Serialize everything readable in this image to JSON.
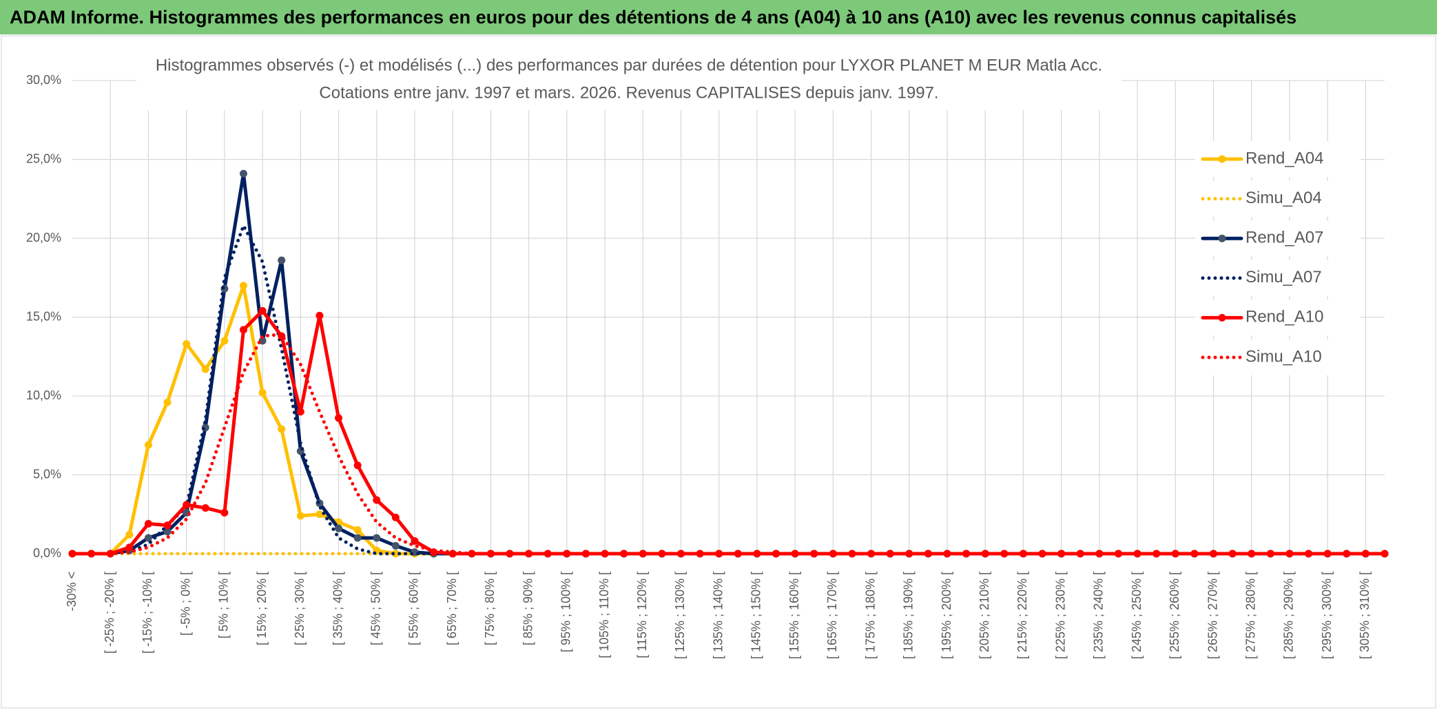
{
  "header": {
    "title": "ADAM Informe. Histogrammes des performances en euros pour des détentions de 4 ans (A04) à 10 ans (A10) avec les revenus connus capitalisés"
  },
  "chart_data": {
    "type": "line",
    "title": "Histogrammes observés (-) et modélisés (...) des performances par durées de détention pour LYXOR PLANET M EUR Matla Acc.",
    "subtitle": "Cotations entre janv. 1997 et mars. 2026. Revenus CAPITALISES depuis janv. 1997.",
    "categories": [
      "-30% <",
      null,
      "[ -25% ; -20% [",
      null,
      "[ -15% ; -10% [",
      null,
      "[ -5% ; 0% [",
      null,
      "[ 5% ; 10% [",
      null,
      "[ 15% ; 20% [",
      null,
      "[ 25% ; 30% [",
      null,
      "[ 35% ; 40% [",
      null,
      "[ 45% ; 50% [",
      null,
      "[ 55% ; 60% [",
      null,
      "[ 65% ; 70% [",
      null,
      "[ 75% ; 80% [",
      null,
      "[ 85% ; 90% [",
      null,
      "[ 95% ; 100% [",
      null,
      "[ 105% ; 110% [",
      null,
      "[ 115% ; 120% [",
      null,
      "[ 125% ; 130% [",
      null,
      "[ 135% ; 140% [",
      null,
      "[ 145% ; 150% [",
      null,
      "[ 155% ; 160% [",
      null,
      "[ 165% ; 170% [",
      null,
      "[ 175% ; 180% [",
      null,
      "[ 185% ; 190% [",
      null,
      "[ 195% ; 200% [",
      null,
      "[ 205% ; 210% [",
      null,
      "[ 215% ; 220% [",
      null,
      "[ 225% ; 230% [",
      null,
      "[ 235% ; 240% [",
      null,
      "[ 245% ; 250% [",
      null,
      "[ 255% ; 260% [",
      null,
      "[ 265% ; 270% [",
      null,
      "[ 275% ; 280% [",
      null,
      "[ 285% ; 290% [",
      null,
      "[ 295% ; 300% [",
      null,
      "[ 305% ; 310% [",
      null
    ],
    "series": [
      {
        "name": "Rend_A04",
        "color": "#FFC000",
        "style": "solid",
        "values": [
          0,
          0,
          0,
          1.2,
          6.9,
          9.6,
          13.3,
          11.7,
          13.5,
          17.0,
          10.2,
          7.9,
          2.4,
          2.5,
          2.0,
          1.5,
          0.2,
          0,
          0,
          0,
          0,
          0,
          0,
          0,
          0,
          0,
          0,
          0,
          0,
          0,
          0,
          0,
          0,
          0,
          0,
          0,
          0,
          0,
          0,
          0,
          0,
          0,
          0,
          0,
          0,
          0,
          0,
          0,
          0,
          0,
          0,
          0,
          0,
          0,
          0,
          0,
          0,
          0,
          0,
          0,
          0,
          0,
          0,
          0,
          0,
          0,
          0,
          0,
          0,
          0
        ]
      },
      {
        "name": "Simu_A04",
        "color": "#FFC000",
        "style": "dotted",
        "values": [
          0,
          0,
          0,
          0,
          0,
          0,
          0,
          0,
          0,
          0,
          0,
          0,
          0,
          0,
          0,
          0,
          0,
          0,
          0,
          0,
          0,
          0,
          0,
          0,
          0,
          0,
          0,
          0,
          0,
          0,
          0,
          0,
          0,
          0,
          0,
          0,
          0,
          0,
          0,
          0,
          0,
          0,
          0,
          0,
          0,
          0,
          0,
          0,
          0,
          0,
          0,
          0,
          0,
          0,
          0,
          0,
          0,
          0,
          0,
          0,
          0,
          0,
          0,
          0,
          0,
          0,
          0,
          0,
          0,
          0
        ]
      },
      {
        "name": "Rend_A07",
        "color": "#002060",
        "style": "solid",
        "values": [
          0,
          0,
          0,
          0.2,
          1.0,
          1.4,
          2.6,
          8.0,
          16.8,
          24.1,
          13.5,
          18.6,
          6.5,
          3.2,
          1.6,
          1.0,
          1.0,
          0.5,
          0.1,
          0,
          0,
          0,
          0,
          0,
          0,
          0,
          0,
          0,
          0,
          0,
          0,
          0,
          0,
          0,
          0,
          0,
          0,
          0,
          0,
          0,
          0,
          0,
          0,
          0,
          0,
          0,
          0,
          0,
          0,
          0,
          0,
          0,
          0,
          0,
          0,
          0,
          0,
          0,
          0,
          0,
          0,
          0,
          0,
          0,
          0,
          0,
          0,
          0,
          0,
          0
        ]
      },
      {
        "name": "Simu_A07",
        "color": "#002060",
        "style": "dotted",
        "values": [
          0,
          0,
          0,
          0.1,
          0.6,
          1.8,
          3.0,
          8.5,
          17.5,
          20.8,
          18.5,
          13.0,
          7.0,
          3.0,
          1.0,
          0.3,
          0,
          0,
          0,
          0,
          0,
          0,
          0,
          0,
          0,
          0,
          0,
          0,
          0,
          0,
          0,
          0,
          0,
          0,
          0,
          0,
          0,
          0,
          0,
          0,
          0,
          0,
          0,
          0,
          0,
          0,
          0,
          0,
          0,
          0,
          0,
          0,
          0,
          0,
          0,
          0,
          0,
          0,
          0,
          0,
          0,
          0,
          0,
          0,
          0,
          0,
          0,
          0,
          0,
          0
        ]
      },
      {
        "name": "Rend_A10",
        "color": "#FF0000",
        "style": "solid",
        "values": [
          0,
          0,
          0,
          0.4,
          1.9,
          1.8,
          3.1,
          2.9,
          2.6,
          14.2,
          15.4,
          13.8,
          9.0,
          15.1,
          8.6,
          5.6,
          3.4,
          2.3,
          0.8,
          0.1,
          0,
          0,
          0,
          0,
          0,
          0,
          0,
          0,
          0,
          0,
          0,
          0,
          0,
          0,
          0,
          0,
          0,
          0,
          0,
          0,
          0,
          0,
          0,
          0,
          0,
          0,
          0,
          0,
          0,
          0,
          0,
          0,
          0,
          0,
          0,
          0,
          0,
          0,
          0,
          0,
          0,
          0,
          0,
          0,
          0,
          0,
          0,
          0,
          0,
          0
        ]
      },
      {
        "name": "Simu_A10",
        "color": "#FF0000",
        "style": "dotted",
        "values": [
          0,
          0,
          0,
          0.1,
          0.4,
          1.0,
          2.2,
          4.5,
          8.0,
          11.5,
          13.8,
          13.9,
          12.0,
          9.0,
          6.2,
          3.8,
          2.0,
          1.0,
          0.5,
          0.2,
          0.1,
          0,
          0,
          0,
          0,
          0,
          0,
          0,
          0,
          0,
          0,
          0,
          0,
          0,
          0,
          0,
          0,
          0,
          0,
          0,
          0,
          0,
          0,
          0,
          0,
          0,
          0,
          0,
          0,
          0,
          0,
          0,
          0,
          0,
          0,
          0,
          0,
          0,
          0,
          0,
          0,
          0,
          0,
          0,
          0,
          0,
          0,
          0,
          0,
          0
        ]
      }
    ],
    "ylim": [
      0,
      30
    ],
    "yticks": [
      {
        "value": 0,
        "label": "0,0%"
      },
      {
        "value": 5,
        "label": "5,0%"
      },
      {
        "value": 10,
        "label": "10,0%"
      },
      {
        "value": 15,
        "label": "15,0%"
      },
      {
        "value": 20,
        "label": "20,0%"
      },
      {
        "value": 25,
        "label": "25,0%"
      },
      {
        "value": 30,
        "label": "30,0%"
      }
    ],
    "grid": true,
    "legend": "right"
  }
}
